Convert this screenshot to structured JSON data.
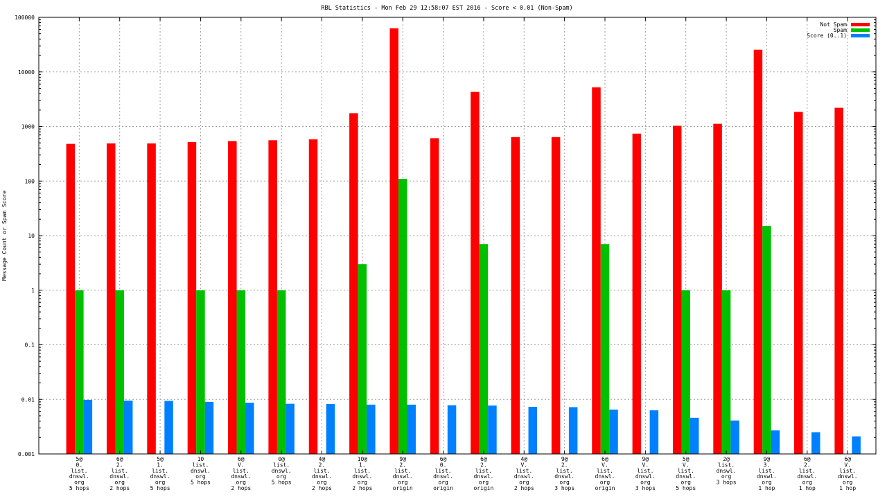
{
  "chart_data": {
    "type": "bar",
    "title": "RBL Statistics - Mon Feb 29 12:58:07 EST 2016 - Score < 0.01 (Non-Spam)",
    "xlabel": "",
    "ylabel": "Message Count or Spam Score",
    "yscale": "log",
    "ylim": [
      0.001,
      100000
    ],
    "yticks": [
      {
        "v": 0.001,
        "label": "0.001"
      },
      {
        "v": 0.01,
        "label": "0.01"
      },
      {
        "v": 0.1,
        "label": "0.1"
      },
      {
        "v": 1,
        "label": "1"
      },
      {
        "v": 10,
        "label": "10"
      },
      {
        "v": 100,
        "label": "100"
      },
      {
        "v": 1000,
        "label": "1000"
      },
      {
        "v": 10000,
        "label": "10000"
      },
      {
        "v": 100000,
        "label": "100000"
      }
    ],
    "grid": true,
    "legend_position": "top-right",
    "categories": [
      [
        "5@",
        "0.",
        "list.",
        "dnswl.",
        "org",
        "5 hops"
      ],
      [
        "6@",
        "2.",
        "list.",
        "dnswl.",
        "org",
        "2 hops"
      ],
      [
        "5@",
        "1.",
        "list.",
        "dnswl.",
        "org",
        "5 hops"
      ],
      [
        "10",
        "list.",
        "dnswl.",
        "org",
        "5 hops"
      ],
      [
        "6@",
        "V.",
        "list.",
        "dnswl.",
        "org",
        "2 hops"
      ],
      [
        "0@",
        "list.",
        "dnswl.",
        "org",
        "5 hops"
      ],
      [
        "4@",
        "2.",
        "list.",
        "dnswl.",
        "org",
        "2 hops"
      ],
      [
        "10@",
        "1.",
        "list.",
        "dnswl.",
        "org",
        "2 hops"
      ],
      [
        "9@",
        "2.",
        "list.",
        "dnswl.",
        "org",
        "origin"
      ],
      [
        "6@",
        "0.",
        "list.",
        "dnswl.",
        "org",
        "origin"
      ],
      [
        "6@",
        "2.",
        "list.",
        "dnswl.",
        "org",
        "origin"
      ],
      [
        "4@",
        "V.",
        "list.",
        "dnswl.",
        "org",
        "2 hops"
      ],
      [
        "9@",
        "2.",
        "list.",
        "dnswl.",
        "org",
        "3 hops"
      ],
      [
        "6@",
        "V.",
        "list.",
        "dnswl.",
        "org",
        "origin"
      ],
      [
        "9@",
        "V.",
        "list.",
        "dnswl.",
        "org",
        "3 hops"
      ],
      [
        "5@",
        "V.",
        "list.",
        "dnswl.",
        "org",
        "5 hops"
      ],
      [
        "2@",
        "list.",
        "dnswl.",
        "org",
        "3 hops"
      ],
      [
        "9@",
        "3.",
        "list.",
        "dnswl.",
        "org",
        "1 hop"
      ],
      [
        "6@",
        "2.",
        "list.",
        "dnswl.",
        "org",
        "1 hop"
      ],
      [
        "6@",
        "V.",
        "list.",
        "dnswl.",
        "org",
        "1 hop"
      ]
    ],
    "series": [
      {
        "name": "Not Spam",
        "color": "#ff0000",
        "values": [
          480,
          490,
          490,
          520,
          540,
          560,
          580,
          1750,
          63000,
          610,
          4300,
          640,
          640,
          5200,
          740,
          1030,
          1120,
          25500,
          1850,
          2200
        ]
      },
      {
        "name": "Spam",
        "color": "#00c000",
        "values": [
          1,
          1,
          null,
          1,
          1,
          1,
          null,
          3,
          110,
          null,
          7,
          null,
          null,
          7,
          null,
          1,
          1,
          15,
          null,
          null
        ]
      },
      {
        "name": "Score (0..1)",
        "color": "#0080ff",
        "values": [
          0.0098,
          0.0095,
          0.0094,
          0.009,
          0.0087,
          0.0083,
          0.0082,
          0.008,
          0.008,
          0.0078,
          0.0077,
          0.0073,
          0.0072,
          0.0065,
          0.0063,
          0.0046,
          0.0041,
          0.0027,
          0.0025,
          0.0021
        ]
      }
    ]
  }
}
